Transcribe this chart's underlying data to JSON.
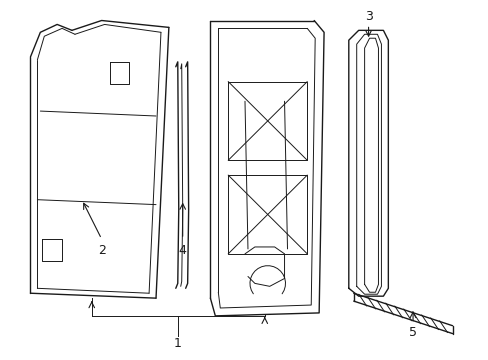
{
  "bg_color": "#ffffff",
  "line_color": "#1a1a1a",
  "figsize": [
    4.89,
    3.6
  ],
  "dpi": 100,
  "label_fontsize": 9
}
